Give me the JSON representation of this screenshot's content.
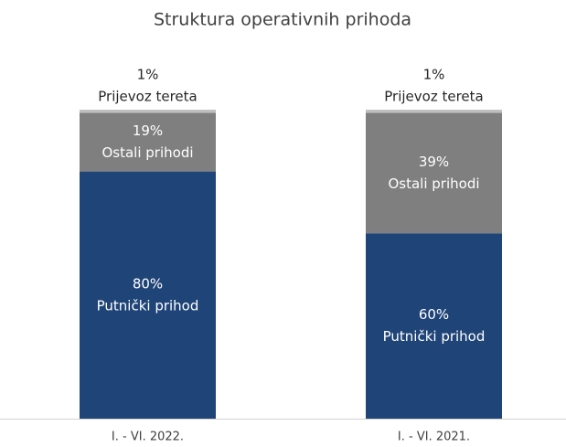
{
  "chart_data": {
    "type": "stacked_bar",
    "title": "Struktura operativnih prihoda",
    "categories": [
      "I. - VI. 2022.",
      "I. - VI. 2021."
    ],
    "series": [
      {
        "name": "Putnički prihod",
        "color": "#1f4478",
        "values": [
          80,
          60
        ],
        "value_labels": [
          "80%",
          "60%"
        ]
      },
      {
        "name": "Ostali prihodi",
        "color": "#7f7f7f",
        "values": [
          19,
          39
        ],
        "value_labels": [
          "19%",
          "39%"
        ]
      },
      {
        "name": "Prijevoz tereta",
        "color": "#bfbfbf",
        "values": [
          1,
          1
        ],
        "value_labels": [
          "1%",
          "1%"
        ]
      }
    ],
    "ylim": [
      0,
      100
    ]
  }
}
